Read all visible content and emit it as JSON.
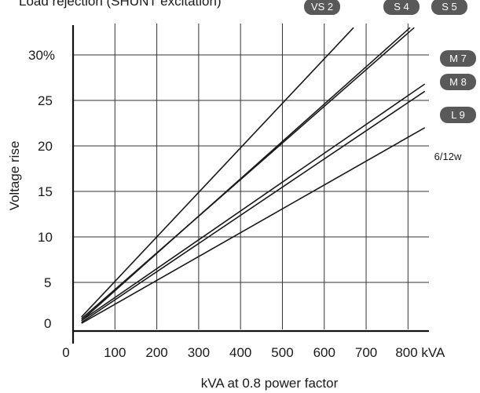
{
  "chart_data": {
    "type": "line",
    "title": "Load rejection (SHUNT excitation)",
    "xlabel": "kVA at 0.8 power factor",
    "ylabel": "Voltage rise",
    "xlim": [
      0,
      850
    ],
    "ylim": [
      0,
      33
    ],
    "x_ticks": [
      {
        "value": 0,
        "label": "0"
      },
      {
        "value": 100,
        "label": "100"
      },
      {
        "value": 200,
        "label": "200"
      },
      {
        "value": 300,
        "label": "300"
      },
      {
        "value": 400,
        "label": "400"
      },
      {
        "value": 500,
        "label": "500"
      },
      {
        "value": 600,
        "label": "600"
      },
      {
        "value": 700,
        "label": "700"
      },
      {
        "value": 800,
        "label": "800 kVA"
      }
    ],
    "y_ticks": [
      {
        "value": 0,
        "label": "0"
      },
      {
        "value": 5,
        "label": "5"
      },
      {
        "value": 10,
        "label": "10"
      },
      {
        "value": 15,
        "label": "15"
      },
      {
        "value": 20,
        "label": "20"
      },
      {
        "value": 25,
        "label": "25"
      },
      {
        "value": 30,
        "label": "30%"
      }
    ],
    "grid": true,
    "series": [
      {
        "name": "VS 2",
        "x": [
          20,
          670
        ],
        "y": [
          1.2,
          33
        ]
      },
      {
        "name": "S 4",
        "x": [
          20,
          815
        ],
        "y": [
          1.0,
          33
        ]
      },
      {
        "name": "S 5",
        "x": [
          20,
          805
        ],
        "y": [
          0.8,
          33
        ]
      },
      {
        "name": "M 7",
        "x": [
          20,
          840
        ],
        "y": [
          0.8,
          26.8
        ]
      },
      {
        "name": "M 8",
        "x": [
          20,
          840
        ],
        "y": [
          0.6,
          26.0
        ]
      },
      {
        "name": "L 9",
        "x": [
          20,
          840
        ],
        "y": [
          0.5,
          22.0
        ]
      }
    ],
    "annotations": [
      "6/12w"
    ]
  },
  "colors": {
    "line": "#1a1a1a",
    "badge": "#595959",
    "badge_text": "#ffffff",
    "background": "#ffffff"
  }
}
